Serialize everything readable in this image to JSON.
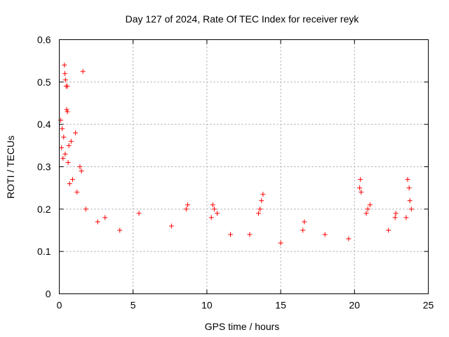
{
  "chart_data": {
    "type": "scatter",
    "title": "Day 127 of 2024, Rate Of TEC Index for receiver reyk",
    "xlabel": "GPS time / hours",
    "ylabel": "ROTI / TECUs",
    "xlim": [
      0,
      25
    ],
    "ylim": [
      0,
      0.6
    ],
    "xticks": [
      0,
      5,
      10,
      15,
      20,
      25
    ],
    "yticks": [
      0,
      0.1,
      0.2,
      0.3,
      0.4,
      0.5,
      0.6
    ],
    "grid": true,
    "marker": "+",
    "color": "#ff0000",
    "series": [
      {
        "name": "ROTI",
        "points": [
          [
            0.35,
            0.54
          ],
          [
            0.38,
            0.52
          ],
          [
            0.42,
            0.505
          ],
          [
            0.47,
            0.49
          ],
          [
            0.55,
            0.49
          ],
          [
            1.6,
            0.525
          ],
          [
            0.5,
            0.435
          ],
          [
            0.55,
            0.43
          ],
          [
            0.1,
            0.41
          ],
          [
            0.2,
            0.39
          ],
          [
            1.1,
            0.38
          ],
          [
            0.3,
            0.37
          ],
          [
            0.8,
            0.36
          ],
          [
            0.65,
            0.35
          ],
          [
            0.15,
            0.345
          ],
          [
            0.4,
            0.33
          ],
          [
            0.25,
            0.32
          ],
          [
            1.4,
            0.3
          ],
          [
            1.5,
            0.29
          ],
          [
            0.6,
            0.31
          ],
          [
            8.7,
            0.21
          ],
          [
            8.6,
            0.2
          ],
          [
            10.4,
            0.21
          ],
          [
            10.5,
            0.2
          ],
          [
            10.7,
            0.19
          ],
          [
            10.3,
            0.18
          ],
          [
            13.8,
            0.235
          ],
          [
            13.7,
            0.22
          ],
          [
            13.6,
            0.2
          ],
          [
            13.5,
            0.19
          ],
          [
            20.4,
            0.27
          ],
          [
            20.35,
            0.25
          ],
          [
            20.45,
            0.24
          ],
          [
            21.05,
            0.21
          ],
          [
            20.9,
            0.2
          ],
          [
            20.8,
            0.19
          ],
          [
            22.8,
            0.19
          ],
          [
            22.75,
            0.18
          ],
          [
            23.6,
            0.27
          ],
          [
            23.7,
            0.25
          ],
          [
            23.75,
            0.22
          ],
          [
            23.85,
            0.2
          ],
          [
            23.5,
            0.18
          ],
          [
            5.4,
            0.19
          ],
          [
            7.6,
            0.16
          ],
          [
            3.1,
            0.18
          ],
          [
            4.1,
            0.15
          ],
          [
            16.6,
            0.17
          ],
          [
            16.5,
            0.15
          ],
          [
            18.0,
            0.14
          ],
          [
            12.9,
            0.14
          ],
          [
            11.6,
            0.14
          ],
          [
            15.0,
            0.12
          ],
          [
            19.6,
            0.13
          ],
          [
            22.3,
            0.15
          ],
          [
            2.6,
            0.17
          ],
          [
            1.8,
            0.2
          ],
          [
            1.2,
            0.24
          ],
          [
            0.9,
            0.27
          ],
          [
            0.7,
            0.26
          ]
        ]
      }
    ]
  }
}
